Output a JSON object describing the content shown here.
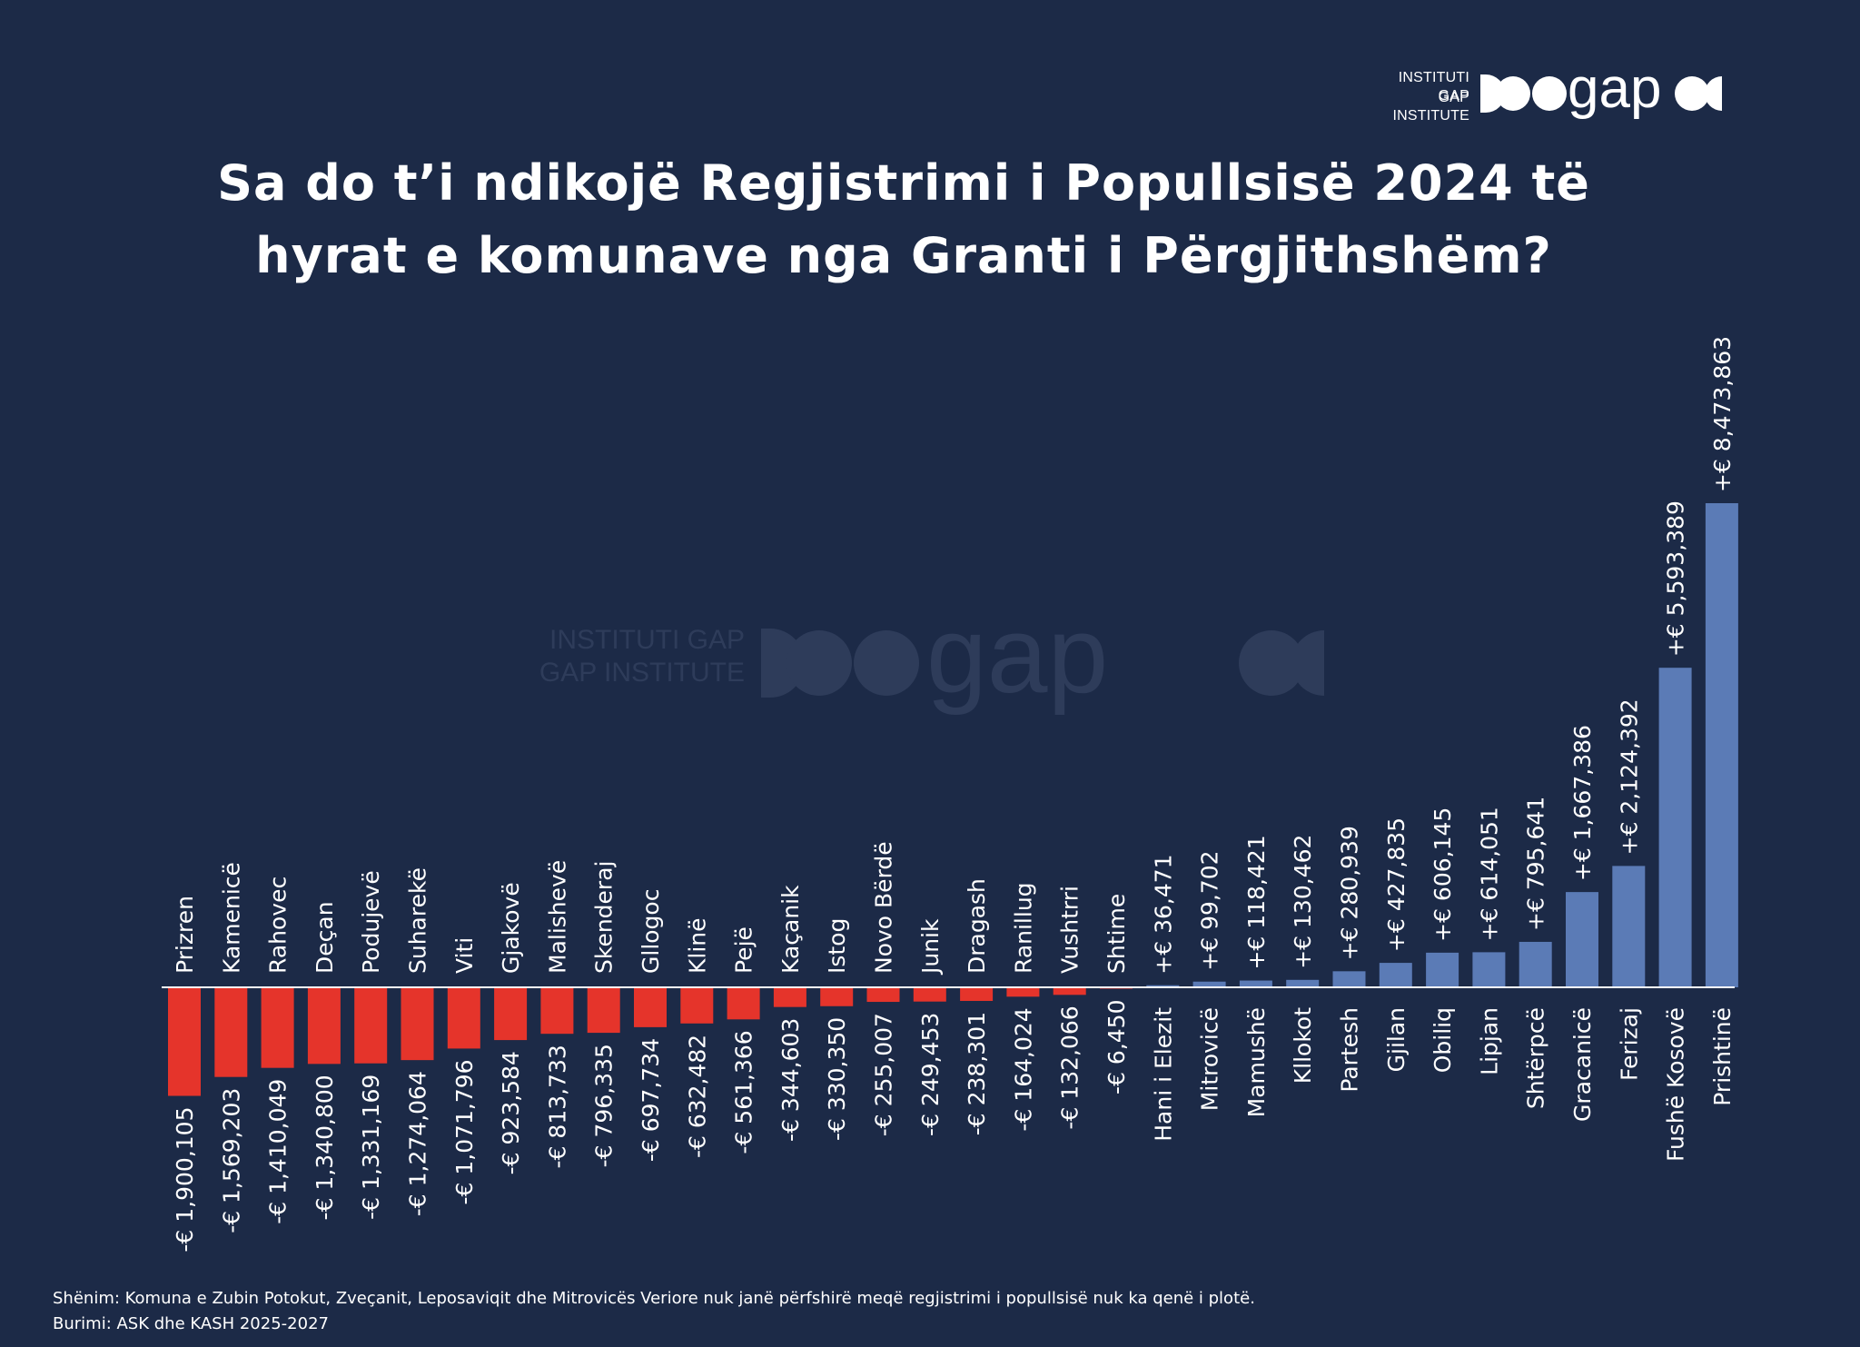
{
  "logo": {
    "line1": "INSTITUTI GAP",
    "line2": "GAP INSTITUTE",
    "wordmark": "gap"
  },
  "title": "Sa do t’i ndikojë Regjistrimi i Popullsisë 2024 të hyrat e komunave nga Granti i Përgjithshëm?",
  "chart_data": {
    "type": "bar",
    "title": "Sa do t’i ndikojë Regjistrimi i Popullsisë 2024 të hyrat e komunave nga Granti i Përgjithshëm?",
    "xlabel": "",
    "ylabel": "",
    "ylim": [
      -1900105,
      8473863
    ],
    "grid": false,
    "legend": "none",
    "categories": [
      "Prizren",
      "Kamenicë",
      "Rahovec",
      "Deçan",
      "Podujevë",
      "Suharekë",
      "Viti",
      "Gjakovë",
      "Malishevë",
      "Skenderaj",
      "Gllogoc",
      "Klinë",
      "Pejë",
      "Kaçanik",
      "Istog",
      "Novo Bërdë",
      "Junik",
      "Dragash",
      "Ranillug",
      "Vushtrri",
      "Shtime",
      "Hani i Elezit",
      "Mitrovicë",
      "Mamushë",
      "Kllokot",
      "Partesh",
      "Gjilan",
      "Obiliq",
      "Lipjan",
      "Shtërpcë",
      "Gracanicë",
      "Ferizaj",
      "Fushë Kosovë",
      "Prishtinë"
    ],
    "values": [
      -1900105,
      -1569203,
      -1410049,
      -1340800,
      -1331169,
      -1274064,
      -1071796,
      -923584,
      -813733,
      -796335,
      -697734,
      -632482,
      -561366,
      -344603,
      -330350,
      -255007,
      -249453,
      -238301,
      -164024,
      -132066,
      -6450,
      36471,
      99702,
      118421,
      130462,
      280939,
      427835,
      606145,
      614051,
      795641,
      1667386,
      2124392,
      5593389,
      8473863
    ],
    "value_labels": [
      "-€ 1,900,105",
      "-€ 1,569,203",
      "-€ 1,410,049",
      "-€ 1,340,800",
      "-€ 1,331,169",
      "-€ 1,274,064",
      "-€ 1,071,796",
      "-€ 923,584",
      "-€ 813,733",
      "-€ 796,335",
      "-€ 697,734",
      "-€ 632,482",
      "-€ 561,366",
      "-€ 344,603",
      "-€ 330,350",
      "-€ 255,007",
      "-€ 249,453",
      "-€ 238,301",
      "-€ 164,024",
      "-€ 132,066",
      "-€ 6,450",
      "+€ 36,471",
      "+€ 99,702",
      "+€ 118,421",
      "+€ 130,462",
      "+€ 280,939",
      "+€ 427,835",
      "+€ 606,145",
      "+€ 614,051",
      "+€ 795,641",
      "+€ 1,667,386",
      "+€ 2,124,392",
      "+€ 5,593,389",
      "+€ 8,473,863"
    ],
    "colors": {
      "negative": "#e5342b",
      "positive": "#5b7bb6",
      "axis": "#ffffff"
    }
  },
  "note": "Shënim: Komuna e Zubin Potokut, Zveçanit, Leposaviqit dhe Mitrovicës Veriore nuk janë përfshirë meqë regjistrimi i popullsisë nuk ka qenë i plotë.",
  "source": "Burimi: ASK dhe KASH 2025-2027",
  "colors": {
    "background": "#1c2a47",
    "text": "#ffffff"
  }
}
